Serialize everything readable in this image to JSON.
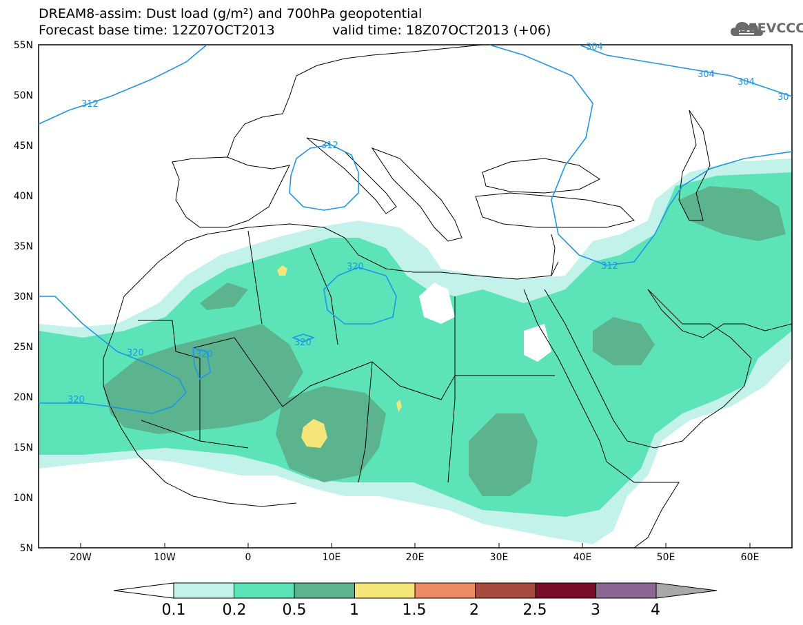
{
  "header": {
    "title_line1": "DREAM8-assim: Dust load (g/m²) and 700hPa geopotential",
    "title_line2": "Forecast base time: 12Z07OCT2013",
    "title_line2b": "valid time: 18Z07OCT2013 (+06)"
  },
  "logo": {
    "text": "SEEVCCC",
    "icon": "cloud-icon"
  },
  "map": {
    "lat_labels": [
      "55N",
      "50N",
      "45N",
      "40N",
      "35N",
      "30N",
      "25N",
      "20N",
      "15N",
      "10N",
      "5N"
    ],
    "lon_labels": [
      "20W",
      "10W",
      "0",
      "10E",
      "20E",
      "30E",
      "40E",
      "50E",
      "60E"
    ],
    "contour_labels": [
      "312",
      "312",
      "304",
      "304",
      "304",
      "30",
      "320",
      "320",
      "320",
      "320",
      "320",
      "312"
    ],
    "colors": {
      "land_outline": "#000000",
      "contour": "#1e96e6"
    }
  },
  "colorbar": {
    "labels": [
      "0.1",
      "0.2",
      "0.5",
      "1",
      "1.5",
      "2",
      "2.5",
      "3",
      "4"
    ],
    "colors": [
      "#c3f2ea",
      "#5de3b8",
      "#5cb48f",
      "#f5e67a",
      "#ed8b64",
      "#a84a3e",
      "#780d2a",
      "#8c6796",
      "#a8a8a8"
    ]
  }
}
